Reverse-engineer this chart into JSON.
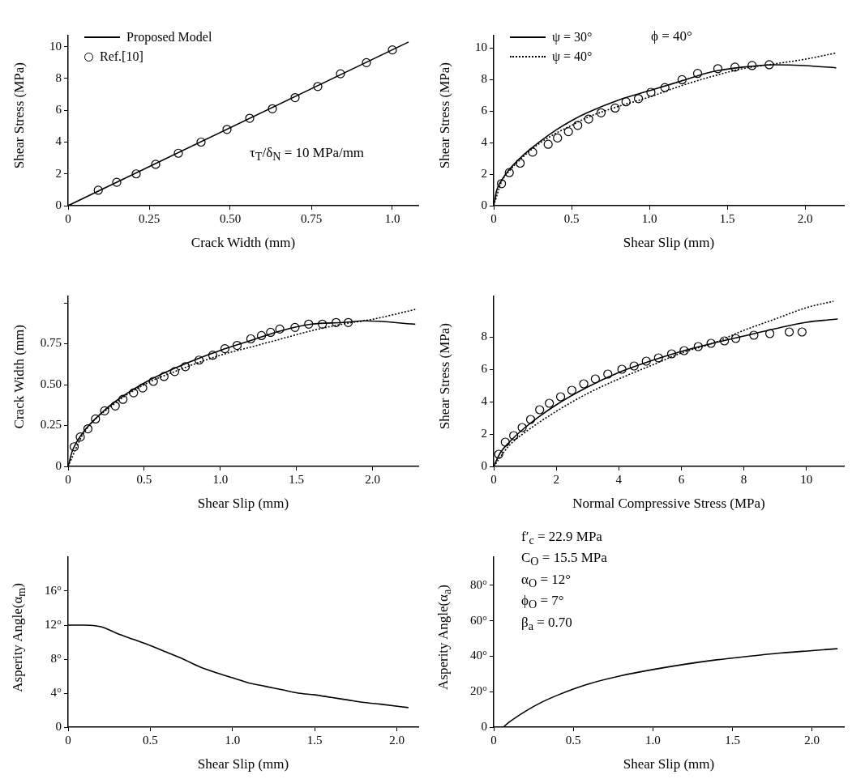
{
  "chart_data": [
    {
      "type": "line",
      "xlabel": "Crack Width (mm)",
      "ylabel": "Shear Stress (MPa)",
      "xlim": [
        0,
        1.08
      ],
      "ylim": [
        0,
        10.7
      ],
      "xticks": [
        0,
        0.25,
        {
          "value": 0.5,
          "label": "0.50"
        },
        0.75,
        {
          "value": 1,
          "label": "1.0"
        }
      ],
      "yticks": [
        0,
        2,
        4,
        6,
        8,
        10
      ],
      "legend": "top left",
      "annotations": [
        "τ$_{T}$/δ$_{N}$ = 10 MPa/mm"
      ],
      "series": [
        {
          "name": "Proposed Model",
          "color": "#000000",
          "line_style": "solid",
          "x": [
            0,
            1.05
          ],
          "values": [
            0,
            10.3
          ]
        },
        {
          "name": "Ref.[10]",
          "type": "scatter",
          "marker": "circle",
          "color": "#000000",
          "x": [
            0.093,
            0.15,
            0.21,
            0.27,
            0.34,
            0.41,
            0.49,
            0.56,
            0.63,
            0.7,
            0.77,
            0.84,
            0.92,
            1.0
          ],
          "values": [
            0.97,
            1.47,
            2.0,
            2.6,
            3.3,
            4.0,
            4.8,
            5.5,
            6.1,
            6.8,
            7.5,
            8.3,
            9.0,
            9.8
          ]
        }
      ]
    },
    {
      "type": "line",
      "xlabel": "Shear Slip (mm)",
      "ylabel": "Shear Stress (MPa)",
      "xlim": [
        0,
        2.25
      ],
      "ylim": [
        0,
        10.8
      ],
      "xticks": [
        0,
        0.5,
        {
          "value": 1,
          "label": "1.0"
        },
        1.5,
        {
          "value": 2,
          "label": "2.0"
        }
      ],
      "yticks": [
        0,
        2,
        4,
        6,
        8,
        10
      ],
      "legend": "top left",
      "annotations": [
        "ϕ = 40°"
      ],
      "series": [
        {
          "name": "ψ = 30°",
          "color": "#000000",
          "line_style": "solid",
          "x": [
            0,
            0.02,
            0.05,
            0.1,
            0.2,
            0.3,
            0.4,
            0.5,
            0.6,
            0.8,
            1.0,
            1.2,
            1.4,
            1.6,
            1.8,
            2.0,
            2.2
          ],
          "values": [
            0,
            1,
            1.6,
            2.3,
            3.3,
            4.1,
            4.8,
            5.4,
            5.9,
            6.7,
            7.3,
            7.9,
            8.5,
            8.8,
            8.95,
            8.9,
            8.75
          ]
        },
        {
          "name": "ψ = 40°",
          "color": "#000000",
          "line_style": "dotted",
          "x": [
            0,
            0.05,
            0.1,
            0.2,
            0.3,
            0.4,
            0.5,
            0.6,
            0.8,
            1.0,
            1.2,
            1.4,
            1.6,
            1.8,
            2.0,
            2.2
          ],
          "values": [
            0,
            1.5,
            2.2,
            3.2,
            4.0,
            4.6,
            5.1,
            5.6,
            6.3,
            6.9,
            7.6,
            8.2,
            8.7,
            9.0,
            9.3,
            9.7
          ]
        },
        {
          "type": "scatter",
          "marker": "circle",
          "color": "#000000",
          "x": [
            0.05,
            0.1,
            0.17,
            0.25,
            0.35,
            0.41,
            0.48,
            0.54,
            0.61,
            0.69,
            0.78,
            0.85,
            0.93,
            1.01,
            1.1,
            1.21,
            1.31,
            1.44,
            1.55,
            1.66,
            1.77
          ],
          "values": [
            1.4,
            2.1,
            2.7,
            3.4,
            3.9,
            4.3,
            4.7,
            5.1,
            5.5,
            5.9,
            6.2,
            6.6,
            6.8,
            7.2,
            7.5,
            8.0,
            8.4,
            8.7,
            8.8,
            8.9,
            8.95
          ]
        }
      ]
    },
    {
      "type": "line",
      "xlabel": "Shear Slip (mm)",
      "ylabel": "Crack Width (mm)",
      "xlim": [
        0,
        2.3
      ],
      "ylim": [
        0,
        1.04
      ],
      "xticks": [
        0,
        0.5,
        {
          "value": 1,
          "label": "1.0"
        },
        1.5,
        {
          "value": 2,
          "label": "2.0"
        }
      ],
      "yticks": [
        0,
        0.25,
        {
          "value": 0.5,
          "label": "0.50"
        },
        0.75,
        {
          "value": 1,
          "label": null
        }
      ],
      "series": [
        {
          "color": "#000000",
          "line_style": "solid",
          "x": [
            0,
            0.03,
            0.1,
            0.2,
            0.3,
            0.5,
            0.7,
            1.0,
            1.2,
            1.4,
            1.6,
            1.8,
            1.95,
            2.28
          ],
          "values": [
            0,
            0.1,
            0.21,
            0.31,
            0.39,
            0.51,
            0.6,
            0.71,
            0.77,
            0.83,
            0.87,
            0.88,
            0.89,
            0.87
          ]
        },
        {
          "color": "#000000",
          "line_style": "dotted",
          "x": [
            0,
            0.1,
            0.3,
            0.5,
            0.7,
            1.0,
            1.2,
            1.4,
            1.6,
            1.8,
            2.0,
            2.28
          ],
          "values": [
            0,
            0.2,
            0.38,
            0.5,
            0.58,
            0.68,
            0.73,
            0.78,
            0.83,
            0.87,
            0.9,
            0.96
          ]
        },
        {
          "type": "scatter",
          "marker": "circle",
          "color": "#000000",
          "x": [
            0.04,
            0.08,
            0.13,
            0.18,
            0.24,
            0.31,
            0.36,
            0.43,
            0.49,
            0.56,
            0.63,
            0.7,
            0.77,
            0.86,
            0.95,
            1.03,
            1.11,
            1.2,
            1.27,
            1.33,
            1.39,
            1.49,
            1.58,
            1.67,
            1.76,
            1.84
          ],
          "values": [
            0.12,
            0.18,
            0.23,
            0.29,
            0.34,
            0.37,
            0.41,
            0.45,
            0.48,
            0.52,
            0.55,
            0.58,
            0.61,
            0.65,
            0.68,
            0.72,
            0.74,
            0.78,
            0.8,
            0.82,
            0.84,
            0.85,
            0.87,
            0.87,
            0.88,
            0.88
          ]
        }
      ]
    },
    {
      "type": "line",
      "xlabel": "Normal Compressive Stress (MPa)",
      "ylabel": "Shear Stress (MPa)",
      "xlim": [
        0,
        11.2
      ],
      "ylim": [
        0,
        10.5
      ],
      "xticks": [
        0,
        2,
        4,
        6,
        8,
        10
      ],
      "yticks": [
        0,
        2,
        4,
        6,
        8
      ],
      "series": [
        {
          "color": "#000000",
          "line_style": "solid",
          "x": [
            0,
            0.2,
            0.5,
            1,
            2,
            3,
            4,
            5,
            6,
            7,
            8,
            9,
            10,
            11
          ],
          "values": [
            0,
            0.8,
            1.5,
            2.4,
            3.8,
            4.9,
            5.8,
            6.5,
            7.1,
            7.6,
            8.05,
            8.5,
            8.9,
            9.1
          ]
        },
        {
          "color": "#000000",
          "line_style": "dotted",
          "x": [
            0,
            0.5,
            1,
            2,
            3,
            4,
            5,
            6,
            7,
            8,
            9,
            10,
            10.87
          ],
          "values": [
            0,
            1.3,
            2.1,
            3.4,
            4.5,
            5.4,
            6.2,
            7.0,
            7.6,
            8.4,
            9.1,
            9.8,
            10.2
          ]
        },
        {
          "type": "scatter",
          "marker": "circle",
          "color": "#000000",
          "x": [
            0.16,
            0.37,
            0.64,
            0.91,
            1.18,
            1.47,
            1.78,
            2.14,
            2.5,
            2.88,
            3.25,
            3.65,
            4.1,
            4.49,
            4.88,
            5.27,
            5.69,
            6.09,
            6.54,
            6.95,
            7.38,
            7.74,
            8.32,
            8.83,
            9.45,
            9.86
          ],
          "values": [
            0.75,
            1.5,
            1.9,
            2.4,
            2.9,
            3.5,
            3.9,
            4.3,
            4.7,
            5.1,
            5.4,
            5.7,
            6.0,
            6.2,
            6.5,
            6.7,
            6.95,
            7.15,
            7.4,
            7.6,
            7.75,
            7.9,
            8.1,
            8.2,
            8.3,
            8.3
          ]
        }
      ]
    },
    {
      "type": "line",
      "xlabel": "Shear Slip (mm)",
      "ylabel": "Asperity Angle(α$_{m}$)",
      "xlim": [
        0,
        2.13
      ],
      "ylim": [
        0,
        20
      ],
      "xticks": [
        0,
        0.5,
        {
          "value": 1,
          "label": "1.0"
        },
        1.5,
        {
          "value": 2,
          "label": "2.0"
        }
      ],
      "yticks": [
        0,
        {
          "value": 4,
          "label": "4°"
        },
        {
          "value": 8,
          "label": "8°"
        },
        {
          "value": 12,
          "label": "12°"
        },
        {
          "value": 16,
          "label": "16°"
        }
      ],
      "series": [
        {
          "color": "#000000",
          "line_style": "solid",
          "x": [
            0,
            0.1,
            0.2,
            0.3,
            0.4,
            0.5,
            0.6,
            0.7,
            0.8,
            0.9,
            1.0,
            1.1,
            1.2,
            1.3,
            1.4,
            1.5,
            1.6,
            1.7,
            1.8,
            1.9,
            2.07
          ],
          "values": [
            12,
            12,
            11.8,
            11,
            10.3,
            9.6,
            8.8,
            8.0,
            7.1,
            6.4,
            5.8,
            5.2,
            4.8,
            4.4,
            4.0,
            3.8,
            3.5,
            3.2,
            2.9,
            2.7,
            2.3
          ]
        }
      ]
    },
    {
      "type": "line",
      "xlabel": "Shear Slip (mm)",
      "ylabel": "Asperity Angle(α$_{a}$)",
      "xlim": [
        0,
        2.2
      ],
      "ylim": [
        0,
        96
      ],
      "xticks": [
        0,
        0.5,
        {
          "value": 1,
          "label": "1.0"
        },
        1.5,
        {
          "value": 2,
          "label": "2.0"
        }
      ],
      "yticks": [
        0,
        {
          "value": 20,
          "label": "20°"
        },
        {
          "value": 40,
          "label": "40°"
        },
        {
          "value": 60,
          "label": "60°"
        },
        {
          "value": 80,
          "label": "80°"
        }
      ],
      "annotations": [
        "f′$_{c}$ = 22.9 MPa",
        "C$_{O}$ = 15.5 MPa",
        "α$_{O}$ = 12°",
        "ϕ$_{O}$ = 7°",
        "β$_{a}$ = 0.70"
      ],
      "series": [
        {
          "color": "#000000",
          "line_style": "solid",
          "x": [
            0.06,
            0.1,
            0.2,
            0.3,
            0.4,
            0.5,
            0.6,
            0.8,
            1.0,
            1.2,
            1.4,
            1.6,
            1.8,
            2.0,
            2.16
          ],
          "values": [
            0,
            3,
            9,
            14,
            18,
            21.5,
            24.5,
            29,
            32.5,
            35.5,
            38,
            40,
            41.8,
            43.2,
            44.3
          ]
        }
      ]
    }
  ]
}
